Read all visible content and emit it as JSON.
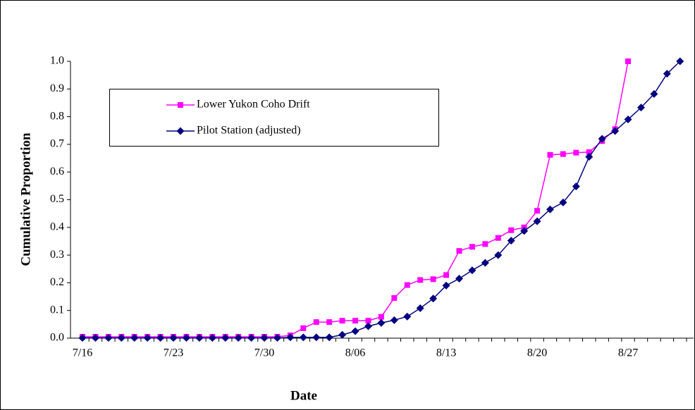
{
  "chart_data": {
    "type": "line",
    "x_label": "Date",
    "y_label": "Cumulative Proportion",
    "categories": [
      "7/16",
      null,
      null,
      null,
      null,
      null,
      null,
      "7/23",
      null,
      null,
      null,
      null,
      null,
      null,
      "7/30",
      null,
      null,
      null,
      null,
      null,
      null,
      "8/06",
      null,
      null,
      null,
      null,
      null,
      null,
      "8/13",
      null,
      null,
      null,
      null,
      null,
      null,
      "8/20",
      null,
      null,
      null,
      null,
      null,
      null,
      "8/27",
      null,
      null,
      null,
      null
    ],
    "series": [
      {
        "name": "Lower Yukon Coho Drift",
        "color": "#ff00ff",
        "marker": "square",
        "values": [
          0.005,
          0.005,
          0.005,
          0.005,
          0.005,
          0.005,
          0.005,
          0.005,
          0.005,
          0.005,
          0.005,
          0.005,
          0.005,
          0.005,
          0.005,
          0.005,
          0.01,
          0.036,
          0.058,
          0.058,
          0.063,
          0.063,
          0.063,
          0.077,
          0.145,
          0.192,
          0.21,
          0.213,
          0.228,
          0.315,
          0.33,
          0.34,
          0.362,
          0.39,
          0.4,
          0.46,
          0.662,
          0.665,
          0.67,
          0.672,
          0.712,
          0.755,
          1.0,
          null,
          null,
          null,
          null
        ]
      },
      {
        "name": "Pilot Station (adjusted)",
        "color": "#000080",
        "marker": "diamond",
        "values": [
          0.001,
          0.001,
          0.001,
          0.001,
          0.001,
          0.001,
          0.001,
          0.001,
          0.001,
          0.001,
          0.001,
          0.001,
          0.001,
          0.001,
          0.001,
          0.001,
          0.003,
          0.003,
          0.003,
          0.003,
          0.012,
          0.025,
          0.043,
          0.055,
          0.065,
          0.078,
          0.108,
          0.143,
          0.19,
          0.215,
          0.245,
          0.272,
          0.3,
          0.352,
          0.387,
          0.422,
          0.465,
          0.49,
          0.548,
          0.655,
          0.72,
          0.748,
          0.79,
          0.833,
          0.882,
          0.955,
          1.0
        ]
      }
    ],
    "ylim": [
      0,
      1
    ],
    "yticks": [
      {
        "value": 0,
        "label": "0.0"
      },
      0.1,
      0.2,
      0.3,
      0.4,
      0.5,
      0.6,
      0.7,
      0.8,
      0.9,
      {
        "value": 1,
        "label": "1.0"
      }
    ],
    "grid": false,
    "legend": "upper-left"
  }
}
